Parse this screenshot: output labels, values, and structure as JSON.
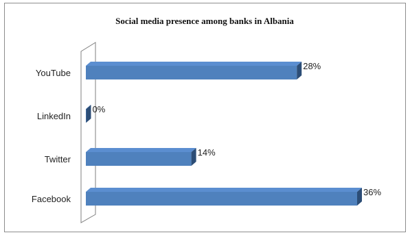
{
  "chart_data": {
    "type": "bar",
    "orientation": "horizontal",
    "title": "Social media presence among banks in Albania",
    "categories": [
      "YouTube",
      "LinkedIn",
      "Twitter",
      "Facebook"
    ],
    "values": [
      28,
      0,
      14,
      36
    ],
    "value_labels": [
      "28%",
      "0%",
      "14%",
      "36%"
    ],
    "xlim": [
      0,
      36
    ],
    "grid": false,
    "legend": "none",
    "style": "3d"
  },
  "colors": {
    "bar_front": "#4f81bd",
    "bar_top": "#5b8ed0",
    "bar_side": "#2c4d76",
    "frame_border": "#8c8c8c",
    "wall_stroke": "#7f7f7f"
  }
}
